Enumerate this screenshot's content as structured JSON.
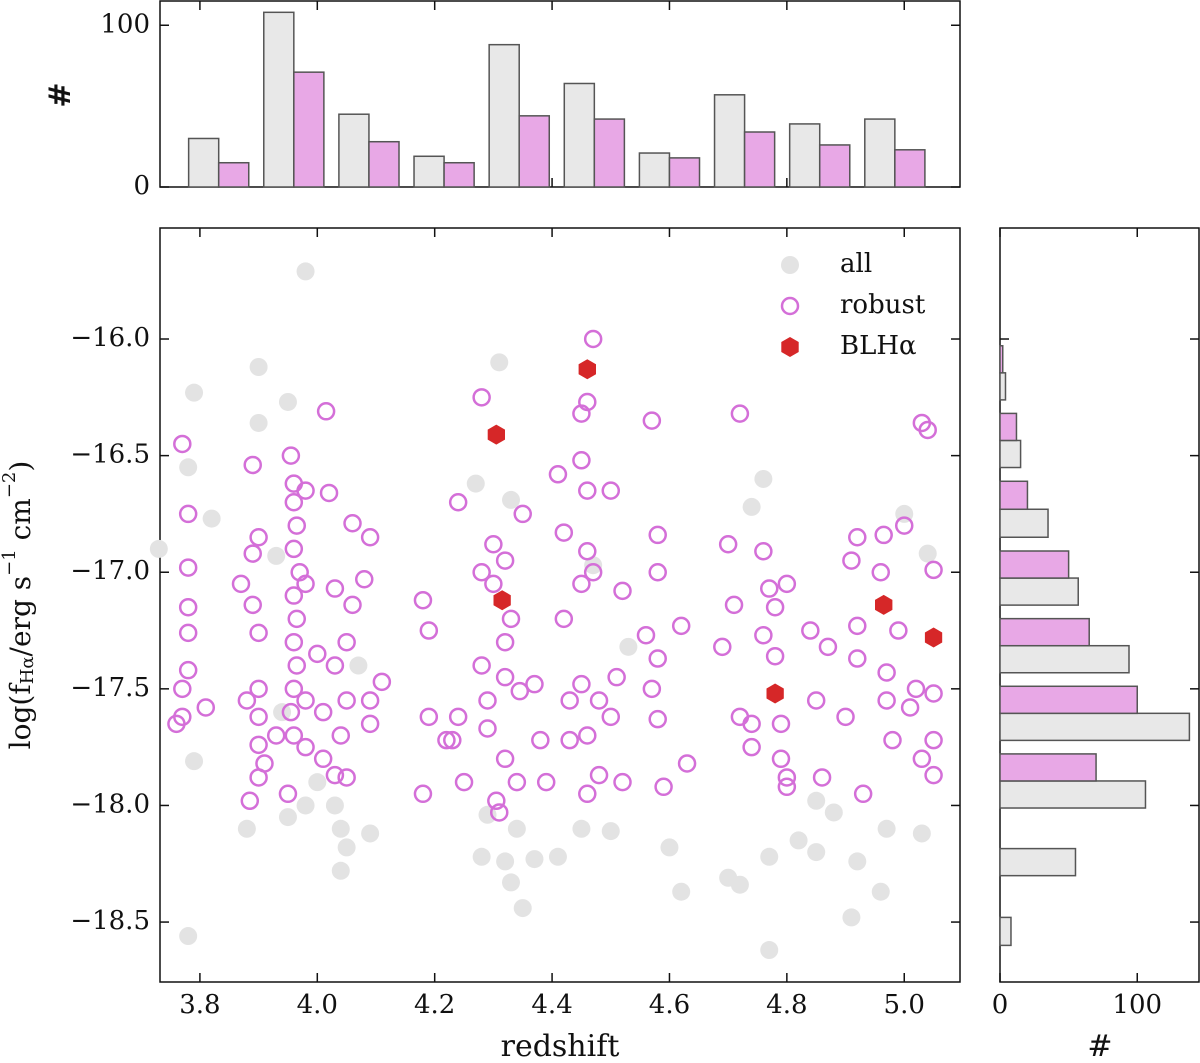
{
  "chart_data": [
    {
      "type": "scatter",
      "xlabel": "redshift",
      "ylabel": [
        "log(f",
        "Hα",
        "/erg s",
        "−1",
        " cm",
        "−2",
        ")"
      ],
      "xlim": [
        3.732,
        5.095
      ],
      "ylim": [
        -18.757,
        -15.524
      ],
      "xticks": [
        3.8,
        {
          "value": 4,
          "label": "4.0"
        },
        4.2,
        4.4,
        4.6,
        4.8,
        {
          "value": 5,
          "label": "5.0"
        }
      ],
      "yticks": [
        {
          "value": -16,
          "label": "−16.0"
        },
        {
          "value": -16.5,
          "label": "−16.5"
        },
        {
          "value": -17,
          "label": "−17.0"
        },
        {
          "value": -17.5,
          "label": "−17.5"
        },
        {
          "value": -18,
          "label": "−18.0"
        },
        {
          "value": -18.5,
          "label": "−18.5"
        }
      ],
      "legend": "upper right",
      "series": [
        {
          "name": "all",
          "color": "#e3e3e3",
          "marker": "filled-circle",
          "x": [
            3.73,
            3.79,
            3.78,
            3.79,
            3.78,
            3.82,
            3.88,
            3.9,
            3.9,
            3.94,
            3.95,
            3.93,
            3.95,
            3.98,
            3.98,
            4.0,
            4.03,
            4.04,
            4.04,
            4.05,
            4.09,
            4.07,
            4.27,
            4.29,
            4.28,
            4.31,
            4.32,
            4.33,
            4.35,
            4.33,
            4.34,
            4.37,
            4.41,
            4.45,
            4.47,
            4.5,
            4.53,
            4.6,
            4.62,
            4.7,
            4.72,
            4.74,
            4.76,
            4.77,
            4.77,
            4.82,
            4.85,
            4.88,
            4.91,
            4.92,
            4.96,
            4.97,
            5.0,
            5.04,
            5.03,
            4.85
          ],
          "values": [
            -16.9,
            -16.23,
            -16.55,
            -17.81,
            -18.56,
            -16.77,
            -18.1,
            -16.12,
            -16.36,
            -17.6,
            -16.27,
            -16.93,
            -18.05,
            -15.71,
            -18.0,
            -17.9,
            -18.0,
            -18.1,
            -18.28,
            -18.18,
            -18.12,
            -17.4,
            -16.62,
            -18.04,
            -18.22,
            -16.1,
            -18.24,
            -18.33,
            -18.44,
            -16.69,
            -18.1,
            -18.23,
            -18.22,
            -18.1,
            -16.97,
            -18.11,
            -17.32,
            -18.18,
            -18.37,
            -18.31,
            -18.34,
            -16.72,
            -16.6,
            -18.22,
            -18.62,
            -18.15,
            -18.2,
            -18.03,
            -18.48,
            -18.24,
            -18.37,
            -18.1,
            -16.75,
            -16.92,
            -18.12,
            -17.98
          ]
        },
        {
          "name": "robust",
          "color": "#d46fd8",
          "marker": "open-circle",
          "x": [
            3.77,
            3.78,
            3.78,
            3.78,
            3.78,
            3.78,
            3.77,
            3.77,
            3.76,
            3.81,
            3.885,
            3.87,
            3.88,
            3.89,
            3.89,
            3.9,
            3.89,
            3.9,
            3.9,
            3.9,
            3.9,
            3.91,
            3.9,
            3.93,
            3.955,
            3.96,
            3.96,
            3.965,
            3.96,
            3.97,
            3.96,
            3.965,
            3.96,
            3.965,
            3.96,
            3.955,
            3.96,
            3.95,
            3.98,
            3.98,
            3.98,
            3.98,
            4.0,
            4.01,
            4.01,
            4.015,
            4.02,
            4.03,
            4.03,
            4.04,
            4.05,
            4.06,
            4.06,
            4.05,
            4.05,
            4.09,
            4.08,
            4.09,
            4.09,
            4.11,
            4.03,
            4.18,
            4.18,
            4.19,
            4.19,
            4.22,
            4.24,
            4.23,
            4.24,
            4.25,
            4.28,
            4.28,
            4.28,
            4.29,
            4.29,
            4.3,
            4.3,
            4.305,
            4.31,
            4.32,
            4.32,
            4.32,
            4.32,
            4.33,
            4.34,
            4.345,
            4.35,
            4.37,
            4.38,
            4.39,
            4.41,
            4.42,
            4.42,
            4.43,
            4.43,
            4.45,
            4.45,
            4.45,
            4.45,
            4.46,
            4.46,
            4.46,
            4.46,
            4.46,
            4.47,
            4.47,
            4.48,
            4.48,
            4.5,
            4.5,
            4.51,
            4.52,
            4.52,
            4.56,
            4.57,
            4.57,
            4.58,
            4.58,
            4.58,
            4.58,
            4.59,
            4.62,
            4.63,
            4.69,
            4.7,
            4.71,
            4.72,
            4.72,
            4.74,
            4.74,
            4.76,
            4.76,
            4.77,
            4.78,
            4.78,
            4.79,
            4.79,
            4.8,
            4.8,
            4.8,
            4.84,
            4.85,
            4.86,
            4.87,
            4.9,
            4.91,
            4.92,
            4.92,
            4.92,
            4.93,
            4.96,
            4.965,
            4.97,
            4.97,
            4.98,
            4.99,
            5.0,
            5.01,
            5.02,
            5.03,
            5.04,
            5.05,
            5.05,
            5.05,
            5.05,
            5.03
          ],
          "values": [
            -16.45,
            -16.75,
            -16.98,
            -17.15,
            -17.26,
            -17.42,
            -17.5,
            -17.62,
            -17.65,
            -17.58,
            -17.98,
            -17.05,
            -17.55,
            -16.54,
            -16.92,
            -16.85,
            -17.14,
            -17.26,
            -17.5,
            -17.62,
            -17.74,
            -17.82,
            -17.88,
            -17.7,
            -16.5,
            -16.62,
            -16.7,
            -16.8,
            -16.9,
            -17.0,
            -17.1,
            -17.2,
            -17.3,
            -17.4,
            -17.5,
            -17.6,
            -17.7,
            -17.95,
            -16.65,
            -17.05,
            -17.55,
            -17.75,
            -17.35,
            -17.6,
            -17.8,
            -16.31,
            -16.66,
            -17.07,
            -17.4,
            -17.7,
            -17.88,
            -16.79,
            -17.14,
            -17.55,
            -17.3,
            -16.85,
            -17.03,
            -17.55,
            -17.65,
            -17.47,
            -17.87,
            -17.12,
            -17.95,
            -17.62,
            -17.25,
            -17.72,
            -16.7,
            -17.72,
            -17.62,
            -17.9,
            -16.25,
            -17.0,
            -17.4,
            -17.55,
            -17.67,
            -16.88,
            -17.05,
            -17.98,
            -18.03,
            -17.3,
            -17.45,
            -16.95,
            -17.8,
            -17.2,
            -17.9,
            -17.51,
            -16.75,
            -17.48,
            -17.72,
            -17.9,
            -16.58,
            -16.83,
            -17.2,
            -17.55,
            -17.72,
            -16.32,
            -16.52,
            -17.05,
            -17.48,
            -16.27,
            -16.65,
            -16.91,
            -17.7,
            -17.95,
            -16.0,
            -17.0,
            -17.55,
            -17.87,
            -16.65,
            -17.62,
            -17.45,
            -17.9,
            -17.08,
            -17.27,
            -17.5,
            -16.35,
            -16.84,
            -17.0,
            -17.37,
            -17.63,
            -17.92,
            -17.23,
            -17.82,
            -17.32,
            -16.88,
            -17.14,
            -16.32,
            -17.62,
            -17.65,
            -17.75,
            -16.91,
            -17.27,
            -17.07,
            -17.15,
            -17.36,
            -17.65,
            -17.8,
            -17.05,
            -17.92,
            -17.88,
            -17.25,
            -17.55,
            -17.88,
            -17.32,
            -17.62,
            -16.95,
            -16.85,
            -17.23,
            -17.37,
            -17.95,
            -17.0,
            -16.84,
            -17.43,
            -17.55,
            -17.72,
            -17.25,
            -16.8,
            -17.58,
            -17.5,
            -16.36,
            -16.39,
            -16.99,
            -17.52,
            -17.72,
            -17.87,
            -17.8
          ]
        },
        {
          "name": "BLHα",
          "color": "#d62728",
          "marker": "hexagon",
          "x": [
            4.305,
            4.46,
            4.315,
            4.78,
            4.965,
            5.05
          ],
          "values": [
            -16.41,
            -16.13,
            -17.12,
            -17.52,
            -17.14,
            -17.28
          ]
        }
      ]
    },
    {
      "type": "histogram",
      "orientation": "vertical",
      "ylabel": "#",
      "bins": [
        3.768,
        3.896,
        4.024,
        4.152,
        4.28,
        4.408,
        4.536,
        4.664,
        4.792,
        4.92,
        5.048
      ],
      "ylim": [
        0,
        115
      ],
      "yticks": [
        0,
        100
      ],
      "series": [
        {
          "color": "#e8e8e8",
          "values": [
            30,
            108,
            45,
            19,
            88,
            64,
            21,
            57,
            39,
            42
          ]
        },
        {
          "color": "#e8a8e6",
          "values": [
            15,
            71,
            28,
            15,
            44,
            42,
            18,
            34,
            26,
            23
          ]
        }
      ]
    },
    {
      "type": "histogram",
      "orientation": "horizontal",
      "xlabel": "#",
      "bins": [
        -18.63,
        -18.33,
        -18.04,
        -17.75,
        -17.46,
        -17.17,
        -16.88,
        -16.58,
        -16.29,
        -16.0
      ],
      "xlim": [
        0,
        145
      ],
      "xticks": [
        0,
        100
      ],
      "series": [
        {
          "color": "#e8e8e8",
          "values": [
            8,
            55,
            106,
            138,
            94,
            57,
            35,
            15,
            4
          ]
        },
        {
          "color": "#e8a8e6",
          "values": [
            0,
            0,
            70,
            100,
            65,
            50,
            20,
            12,
            2
          ]
        }
      ]
    }
  ]
}
